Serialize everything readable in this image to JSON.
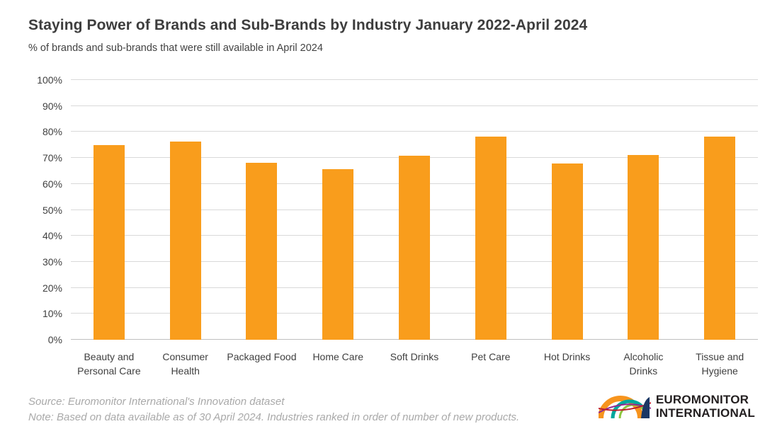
{
  "chart_data": {
    "type": "bar",
    "title": "Staying Power of Brands and Sub-Brands by Industry January 2022-April 2024",
    "subtitle": "% of brands and sub-brands that were still available in April 2024",
    "categories": [
      "Beauty and Personal Care",
      "Consumer Health",
      "Packaged Food",
      "Home Care",
      "Soft Drinks",
      "Pet Care",
      "Hot Drinks",
      "Alcoholic Drinks",
      "Tissue and Hygiene"
    ],
    "categories_wrapped": [
      [
        "Beauty and",
        "Personal Care"
      ],
      [
        "Consumer",
        "Health"
      ],
      [
        "Packaged Food"
      ],
      [
        "Home Care"
      ],
      [
        "Soft Drinks"
      ],
      [
        "Pet Care"
      ],
      [
        "Hot Drinks"
      ],
      [
        "Alcoholic",
        "Drinks"
      ],
      [
        "Tissue and",
        "Hygiene"
      ]
    ],
    "values": [
      74.8,
      76.3,
      68.0,
      65.7,
      70.8,
      78.1,
      67.9,
      71.2,
      78.1
    ],
    "xlabel": "",
    "ylabel": "",
    "ylim": [
      0,
      100
    ],
    "yticks": [
      "0%",
      "10%",
      "20%",
      "30%",
      "40%",
      "50%",
      "60%",
      "70%",
      "80%",
      "90%",
      "100%"
    ],
    "grid": true,
    "legend": false,
    "bar_color": "#F99D1C",
    "gridline_color": "#D9D9D9",
    "axis_line_color": "#BFBFBF"
  },
  "footer": {
    "source": "Source: Euromonitor International's Innovation dataset",
    "note": "Note: Based on data available as of 30 April 2024. Industries ranked in order of number of new products."
  },
  "logo": {
    "line1": "EUROMONITOR",
    "line2": "INTERNATIONAL",
    "colors": {
      "orange": "#F7941D",
      "teal": "#00A79D",
      "green": "#8DC63F",
      "magenta": "#92278F",
      "red": "#BE1E2D",
      "navy": "#1B3764"
    }
  }
}
